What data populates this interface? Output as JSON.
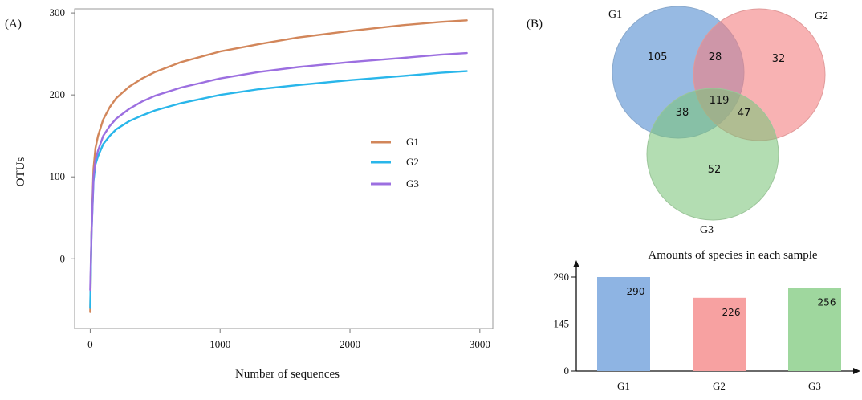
{
  "panel_a_label": "(A)",
  "panel_b_label": "(B)",
  "chart_data": [
    {
      "type": "line",
      "title": "",
      "xlabel": "Number of sequences",
      "ylabel": "OTUs",
      "xlim": [
        -120,
        3100
      ],
      "ylim": [
        -85,
        305
      ],
      "xticks": [
        0,
        1000,
        2000,
        3000
      ],
      "yticks": [
        0,
        100,
        200,
        300
      ],
      "legend_position": "right",
      "series": [
        {
          "name": "G1",
          "color": "#d2865a",
          "x": [
            0,
            10,
            25,
            40,
            60,
            100,
            150,
            200,
            300,
            400,
            500,
            700,
            1000,
            1300,
            1600,
            2000,
            2400,
            2700,
            2900
          ],
          "y": [
            -65,
            35,
            110,
            135,
            150,
            170,
            185,
            196,
            210,
            220,
            228,
            240,
            253,
            262,
            270,
            278,
            285,
            289,
            291
          ]
        },
        {
          "name": "G2",
          "color": "#29b6ea",
          "x": [
            0,
            10,
            25,
            40,
            60,
            100,
            150,
            200,
            300,
            400,
            500,
            700,
            1000,
            1300,
            1600,
            2000,
            2400,
            2700,
            2900
          ],
          "y": [
            -60,
            30,
            95,
            115,
            125,
            140,
            150,
            158,
            168,
            175,
            181,
            190,
            200,
            207,
            212,
            218,
            223,
            227,
            229
          ]
        },
        {
          "name": "G3",
          "color": "#9c6fe0",
          "x": [
            0,
            10,
            25,
            40,
            60,
            100,
            150,
            200,
            300,
            400,
            500,
            700,
            1000,
            1300,
            1600,
            2000,
            2400,
            2700,
            2900
          ],
          "y": [
            -38,
            30,
            100,
            120,
            132,
            150,
            162,
            171,
            183,
            192,
            199,
            209,
            220,
            228,
            234,
            240,
            245,
            249,
            251
          ]
        }
      ]
    },
    {
      "type": "venn",
      "sets": [
        {
          "name": "G1",
          "color": "#6f9fd8"
        },
        {
          "name": "G2",
          "color": "#f47f80"
        },
        {
          "name": "G3",
          "color": "#7cc47a"
        }
      ],
      "regions": {
        "G1_only": "105",
        "G2_only": "32",
        "G3_only": "52",
        "G1_G2": "28",
        "G1_G3": "38",
        "G2_G3": "47",
        "G1_G2_G3": "119"
      }
    },
    {
      "type": "bar",
      "title": "Amounts of species in each sample",
      "categories": [
        "G1",
        "G2",
        "G3"
      ],
      "values": [
        290,
        226,
        256
      ],
      "value_labels": [
        "290",
        "226",
        "256"
      ],
      "colors": [
        "#8eb4e3",
        "#f7a1a1",
        "#9fd79e"
      ],
      "yticks": [
        "0",
        "145",
        "290"
      ],
      "ylim": [
        0,
        330
      ]
    }
  ]
}
